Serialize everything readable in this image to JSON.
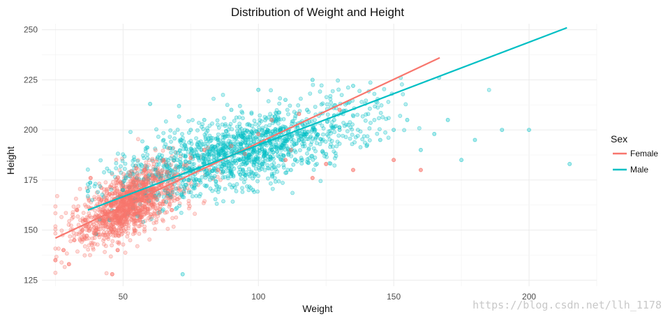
{
  "chart_data": {
    "type": "scatter",
    "title": "Distribution of Weight and Height",
    "xlabel": "Weight",
    "ylabel": "Height",
    "xlim": [
      20,
      225
    ],
    "ylim": [
      122,
      253
    ],
    "xticks": [
      50,
      100,
      150,
      200
    ],
    "xtick_labels": [
      "50",
      "100",
      "150",
      "200"
    ],
    "yticks": [
      125,
      150,
      175,
      200,
      225,
      250
    ],
    "ytick_labels": [
      "125",
      "150",
      "175",
      "200",
      "225",
      "250"
    ],
    "grid": true,
    "legend": {
      "title": "Sex",
      "position": "right",
      "entries": [
        {
          "label": "Female",
          "color": "#F8766D"
        },
        {
          "label": "Male",
          "color": "#00BFC4"
        }
      ]
    },
    "series": [
      {
        "name": "Female",
        "color": "#F8766D",
        "cluster_center": [
          52,
          163
        ],
        "weight_range": [
          25,
          160
        ],
        "height_range": [
          127,
          210
        ],
        "points": [
          [
            25,
            135
          ],
          [
            28,
            140
          ],
          [
            30,
            133
          ],
          [
            32,
            145
          ],
          [
            33,
            160
          ],
          [
            35,
            150
          ],
          [
            36,
            155
          ],
          [
            38,
            176
          ],
          [
            40,
            150
          ],
          [
            42,
            165
          ],
          [
            44,
            158
          ],
          [
            45,
            168
          ],
          [
            46,
            128
          ],
          [
            48,
            140
          ],
          [
            50,
            172
          ],
          [
            52,
            160
          ],
          [
            55,
            165
          ],
          [
            58,
            180
          ],
          [
            60,
            170
          ],
          [
            62,
            176
          ],
          [
            65,
            185
          ],
          [
            68,
            160
          ],
          [
            70,
            175
          ],
          [
            75,
            186
          ],
          [
            80,
            190
          ],
          [
            85,
            180
          ],
          [
            90,
            192
          ],
          [
            95,
            188
          ],
          [
            100,
            198
          ],
          [
            105,
            205
          ],
          [
            110,
            185
          ],
          [
            112,
            190
          ],
          [
            115,
            208
          ],
          [
            120,
            176
          ],
          [
            125,
            183
          ],
          [
            130,
            210
          ],
          [
            135,
            180
          ],
          [
            150,
            185
          ],
          [
            160,
            180
          ]
        ],
        "trend": {
          "x": [
            25,
            167
          ],
          "y": [
            146,
            236
          ]
        }
      },
      {
        "name": "Male",
        "color": "#00BFC4",
        "cluster_center": [
          95,
          190
        ],
        "weight_range": [
          37,
          215
        ],
        "height_range": [
          128,
          226
        ],
        "points": [
          [
            40,
            148
          ],
          [
            45,
            155
          ],
          [
            50,
            170
          ],
          [
            55,
            176
          ],
          [
            60,
            213
          ],
          [
            62,
            180
          ],
          [
            65,
            195
          ],
          [
            70,
            185
          ],
          [
            72,
            128
          ],
          [
            75,
            200
          ],
          [
            78,
            175
          ],
          [
            80,
            205
          ],
          [
            85,
            195
          ],
          [
            88,
            185
          ],
          [
            90,
            210
          ],
          [
            95,
            200
          ],
          [
            98,
            170
          ],
          [
            100,
            220
          ],
          [
            105,
            190
          ],
          [
            108,
            200
          ],
          [
            110,
            215
          ],
          [
            112,
            180
          ],
          [
            115,
            195
          ],
          [
            118,
            210
          ],
          [
            120,
            225
          ],
          [
            125,
            188
          ],
          [
            128,
            205
          ],
          [
            130,
            200
          ],
          [
            135,
            222
          ],
          [
            140,
            192
          ],
          [
            145,
            195
          ],
          [
            150,
            200
          ],
          [
            155,
            205
          ],
          [
            160,
            190
          ],
          [
            165,
            198
          ],
          [
            170,
            205
          ],
          [
            175,
            185
          ],
          [
            180,
            195
          ],
          [
            190,
            200
          ],
          [
            200,
            200
          ],
          [
            215,
            183
          ]
        ],
        "trend": {
          "x": [
            37,
            214
          ],
          "y": [
            160,
            251
          ]
        }
      }
    ]
  },
  "watermark": "https://blog.csdn.net/llh_1178"
}
